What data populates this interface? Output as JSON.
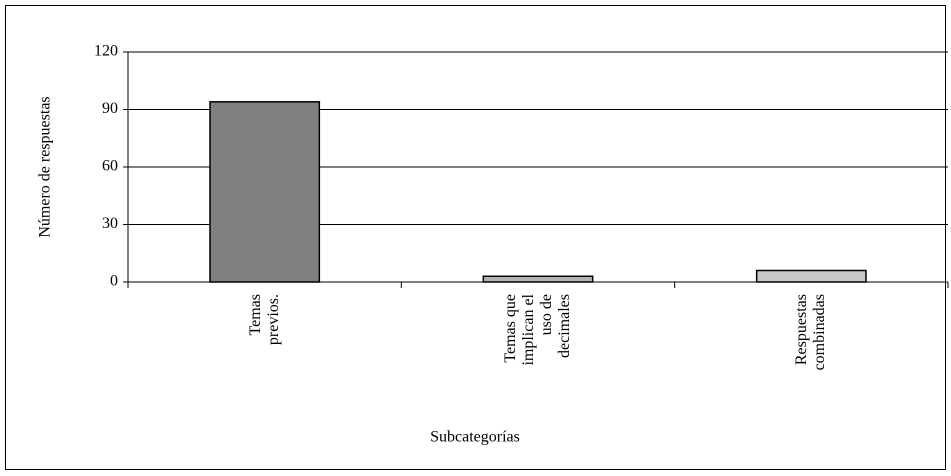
{
  "chart_data": {
    "type": "bar",
    "categories": [
      "Temas previos.",
      "Temas que implican el uso de decimales",
      "Respuestas combinadas"
    ],
    "series": [
      {
        "name": "Número de respuestas",
        "colors": [
          "#808080",
          "#b3b3b3",
          "#c8c8c8"
        ],
        "values": [
          94,
          3,
          6
        ]
      }
    ],
    "x_label": "Subcategorías",
    "y_label": "Número de respuestas",
    "ylim": [
      0,
      120
    ],
    "yticks": [
      0,
      30,
      60,
      90,
      120
    ],
    "grid": true
  }
}
